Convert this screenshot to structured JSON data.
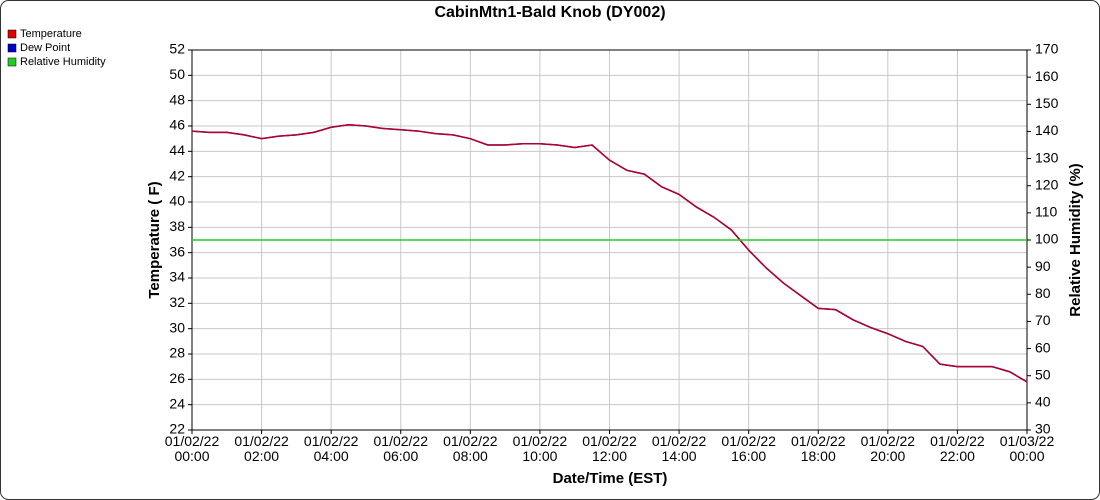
{
  "chart_data": {
    "type": "line",
    "title": "CabinMtn1-Bald Knob (DY002)",
    "x_label": "Date/Time (EST)",
    "y_label": "Temperature ( F)",
    "y2_label": "Relative Humidity (%)",
    "x": [
      0,
      0.5,
      1,
      1.5,
      2,
      2.5,
      3,
      3.5,
      4,
      4.5,
      5,
      5.5,
      6,
      6.5,
      7,
      7.5,
      8,
      8.5,
      9,
      9.5,
      10,
      10.5,
      11,
      11.5,
      12,
      12.5,
      13,
      13.5,
      14,
      14.5,
      15,
      15.5,
      16,
      16.5,
      17,
      17.5,
      18,
      18.5,
      19,
      19.5,
      20,
      20.5,
      21,
      21.5,
      22,
      22.5,
      23,
      23.5,
      24
    ],
    "xlim": [
      0,
      24
    ],
    "xticks": [
      {
        "value": 0,
        "label": "01/02/22 00:00"
      },
      {
        "value": 2,
        "label": "01/02/22 02:00"
      },
      {
        "value": 4,
        "label": "01/02/22 04:00"
      },
      {
        "value": 6,
        "label": "01/02/22 06:00"
      },
      {
        "value": 8,
        "label": "01/02/22 08:00"
      },
      {
        "value": 10,
        "label": "01/02/22 10:00"
      },
      {
        "value": 12,
        "label": "01/02/22 12:00"
      },
      {
        "value": 14,
        "label": "01/02/22 14:00"
      },
      {
        "value": 16,
        "label": "01/02/22 16:00"
      },
      {
        "value": 18,
        "label": "01/02/22 18:00"
      },
      {
        "value": 20,
        "label": "01/02/22 20:00"
      },
      {
        "value": 22,
        "label": "01/02/22 22:00"
      },
      {
        "value": 24,
        "label": "01/03/22 00:00"
      }
    ],
    "ylim": [
      22,
      52
    ],
    "yticks": [
      22,
      24,
      26,
      28,
      30,
      32,
      34,
      36,
      38,
      40,
      42,
      44,
      46,
      48,
      50,
      52
    ],
    "y2lim": [
      30,
      170
    ],
    "y2ticks": [
      30,
      40,
      50,
      60,
      70,
      80,
      90,
      100,
      110,
      120,
      130,
      140,
      150,
      160,
      170
    ],
    "grid": true,
    "legend": "top-left",
    "series": [
      {
        "name": "Temperature",
        "color": "#e00000",
        "values": [
          45.6,
          45.5,
          45.5,
          45.3,
          45.0,
          45.2,
          45.3,
          45.5,
          45.9,
          46.1,
          46.0,
          45.8,
          45.7,
          45.6,
          45.4,
          45.3,
          45.0,
          44.5,
          44.5,
          44.6,
          44.6,
          44.5,
          44.3,
          44.5,
          43.3,
          42.5,
          42.2,
          41.2,
          40.6,
          39.6,
          38.8,
          37.8,
          36.2,
          34.8,
          33.6,
          32.6,
          31.6,
          31.5,
          30.7,
          30.1,
          29.6,
          29.0,
          28.6,
          27.2,
          27.0,
          27.0,
          27.0,
          26.6,
          25.8
        ]
      },
      {
        "name": "Dew Point",
        "color": "#0000cc",
        "values": [
          45.6,
          45.5,
          45.5,
          45.3,
          45.0,
          45.2,
          45.3,
          45.5,
          45.9,
          46.1,
          46.0,
          45.8,
          45.7,
          45.6,
          45.4,
          45.3,
          45.0,
          44.5,
          44.5,
          44.6,
          44.6,
          44.5,
          44.3,
          44.5,
          43.3,
          42.5,
          42.2,
          41.2,
          40.6,
          39.6,
          38.8,
          37.8,
          36.2,
          34.8,
          33.6,
          32.6,
          31.6,
          31.5,
          30.7,
          30.1,
          29.6,
          29.0,
          28.6,
          27.2,
          27.0,
          27.0,
          27.0,
          26.6,
          25.8
        ]
      },
      {
        "name": "Relative Humidity",
        "color": "#22cc22",
        "axis": "y2",
        "values": [
          100,
          100,
          100,
          100,
          100,
          100,
          100,
          100,
          100,
          100,
          100,
          100,
          100,
          100,
          100,
          100,
          100,
          100,
          100,
          100,
          100,
          100,
          100,
          100,
          100,
          100,
          100,
          100,
          100,
          100,
          100,
          100,
          100,
          100,
          100,
          100,
          100,
          100,
          100,
          100,
          100,
          100,
          100,
          100,
          100,
          100,
          100,
          100,
          100
        ]
      }
    ]
  }
}
